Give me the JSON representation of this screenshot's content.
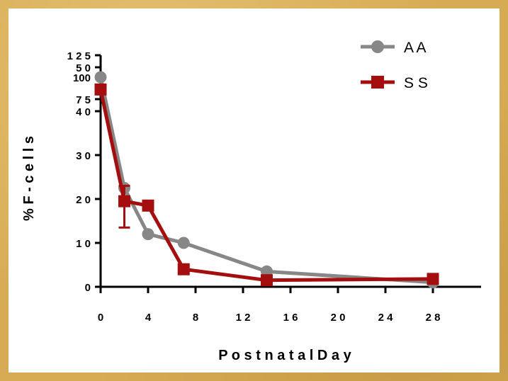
{
  "chart_data": {
    "type": "line",
    "ylabel": "% F-cells",
    "xlabel": "Postnatal Day",
    "x_ticks": [
      "0",
      "4",
      "8",
      "12",
      "16",
      "20",
      "24",
      "28"
    ],
    "y_ticks_lower": [
      "0",
      "10",
      "20",
      "30",
      "40",
      "50"
    ],
    "y_ticks_upper": [
      "75",
      "100",
      "125"
    ],
    "xlim": [
      0,
      30
    ],
    "ylim_lower": [
      0,
      50
    ],
    "ylim_upper": [
      75,
      125
    ],
    "y_axis_break": true,
    "legend_position": "top-right",
    "series": [
      {
        "name": "A A",
        "marker": "circle",
        "color": "#878787",
        "points": [
          {
            "x": 0,
            "y": 100
          },
          {
            "x": 2,
            "y": 22.5
          },
          {
            "x": 4,
            "y": 12
          },
          {
            "x": 7,
            "y": 10
          },
          {
            "x": 14,
            "y": 3.5
          },
          {
            "x": 28,
            "y": 1
          }
        ]
      },
      {
        "name": "S S",
        "marker": "square",
        "color": "#a40e0e",
        "points": [
          {
            "x": 0,
            "y": 86,
            "err": 3
          },
          {
            "x": 2,
            "y": 19.5,
            "err_hi": 3.5,
            "err_lo": 6
          },
          {
            "x": 4,
            "y": 18.5
          },
          {
            "x": 7,
            "y": 4
          },
          {
            "x": 14,
            "y": 1.5
          },
          {
            "x": 28,
            "y": 1.8
          }
        ]
      }
    ]
  }
}
